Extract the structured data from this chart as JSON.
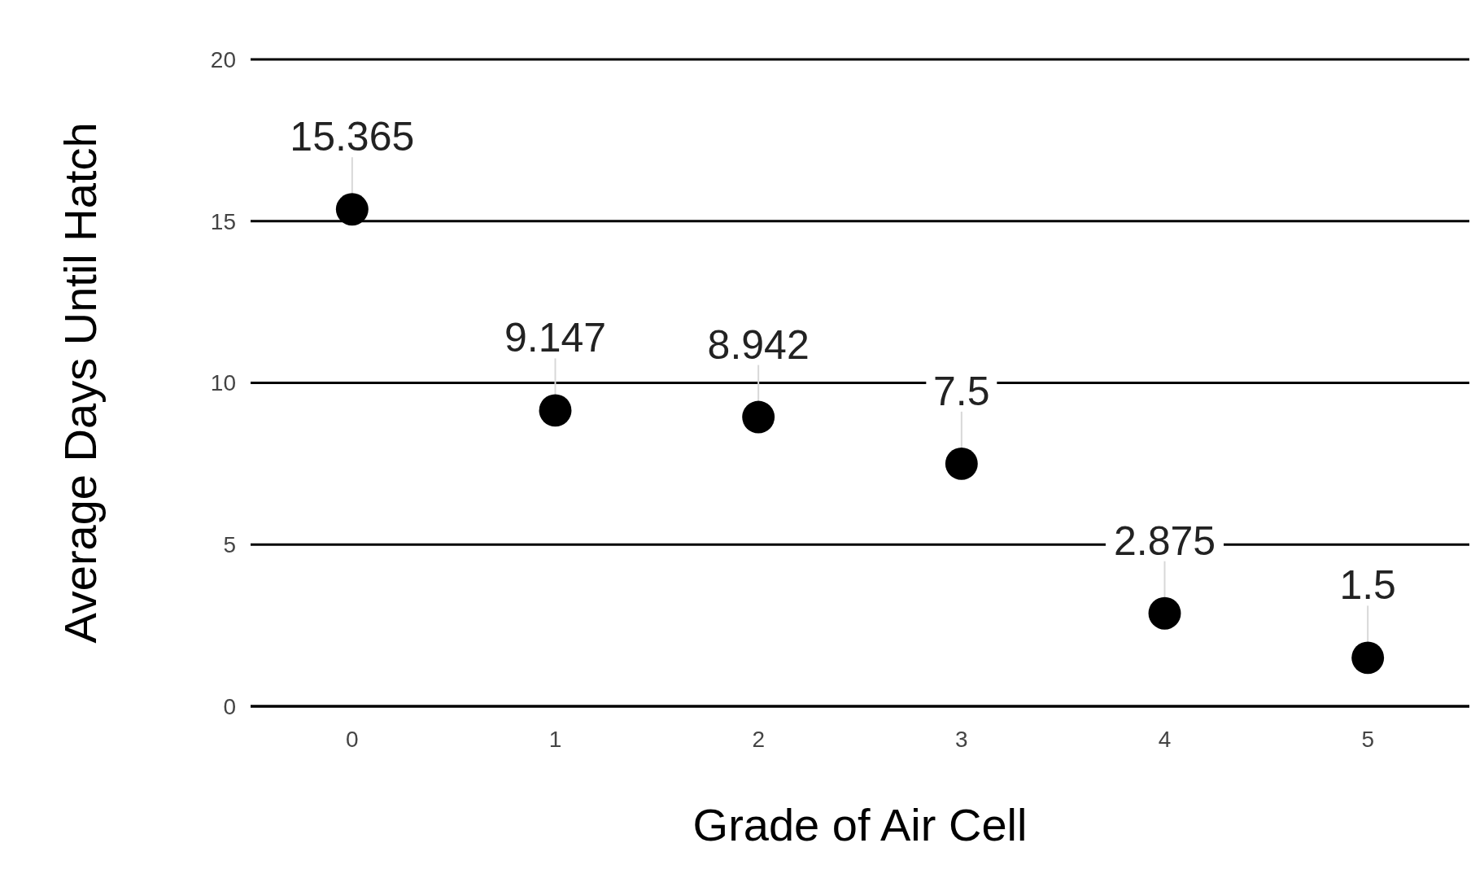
{
  "chart_data": {
    "type": "scatter",
    "xlabel": "Grade of Air Cell",
    "ylabel": "Average Days Until Hatch",
    "x": [
      0,
      1,
      2,
      3,
      4,
      5
    ],
    "series": [
      {
        "color": "#000000",
        "values": [
          15.365,
          9.147,
          8.942,
          7.5,
          2.875,
          1.5
        ]
      }
    ],
    "xlim": [
      -0.5,
      5.5
    ],
    "xticks": [
      0,
      1,
      2,
      3,
      4,
      5
    ],
    "ylim": [
      0,
      20
    ],
    "yticks": [
      0,
      5,
      10,
      15,
      20
    ],
    "grid": "y",
    "marker": "circle",
    "data_labels": true
  }
}
